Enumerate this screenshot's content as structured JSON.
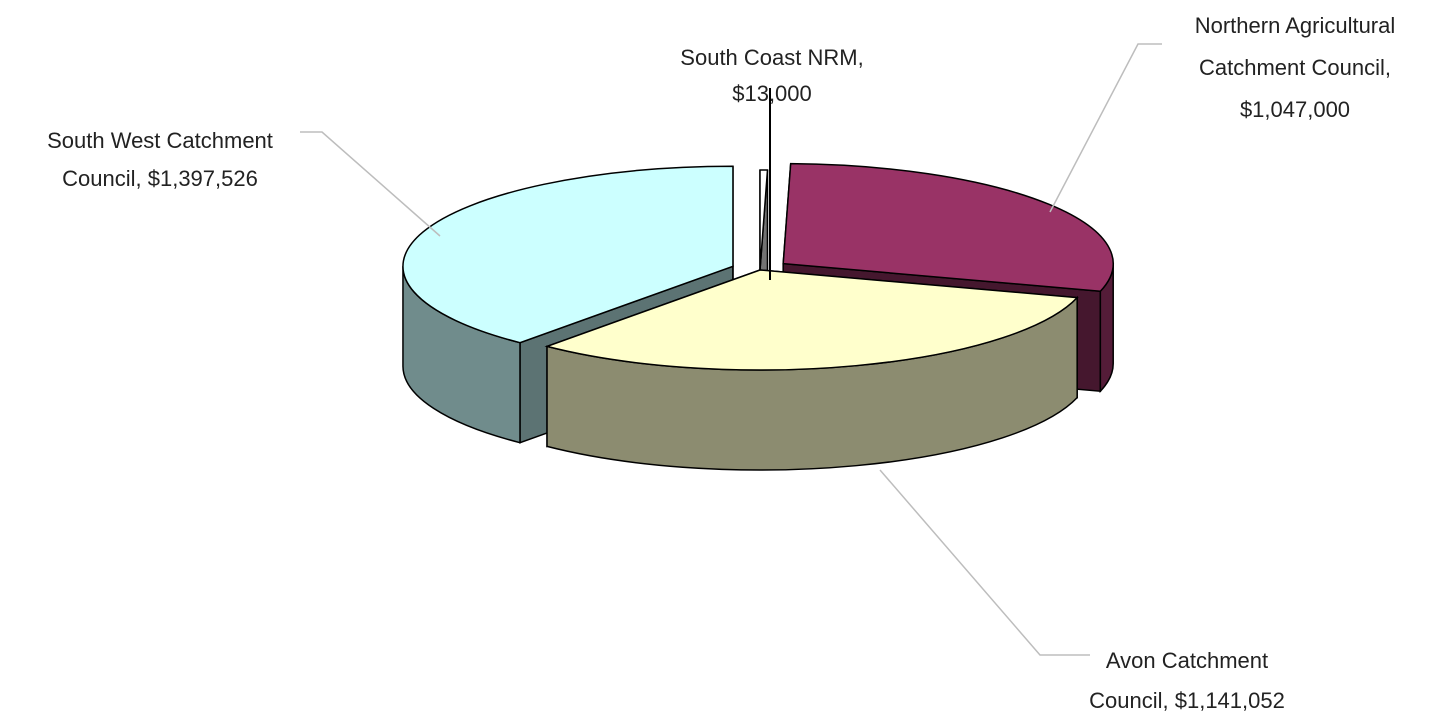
{
  "chart_data": {
    "type": "pie",
    "style": "3d-exploded",
    "title": "",
    "slices": [
      {
        "name": "South Coast NRM",
        "value": 13000,
        "label_lines": [
          "South Coast NRM,",
          "$13,000"
        ],
        "color": "#ffffff"
      },
      {
        "name": "Northern Agricultural Catchment Council",
        "value": 1047000,
        "label_lines": [
          "Northern Agricultural",
          "Catchment Council,",
          "$1,047,000"
        ],
        "color": "#993366"
      },
      {
        "name": "Avon Catchment Council",
        "value": 1141052,
        "label_lines": [
          "Avon Catchment",
          "Council, $1,141,052"
        ],
        "color": "#ffffcc"
      },
      {
        "name": "South West Catchment Council",
        "value": 1397526,
        "label_lines": [
          "South West Catchment",
          "Council, $1,397,526"
        ],
        "color": "#ccffff"
      }
    ]
  }
}
